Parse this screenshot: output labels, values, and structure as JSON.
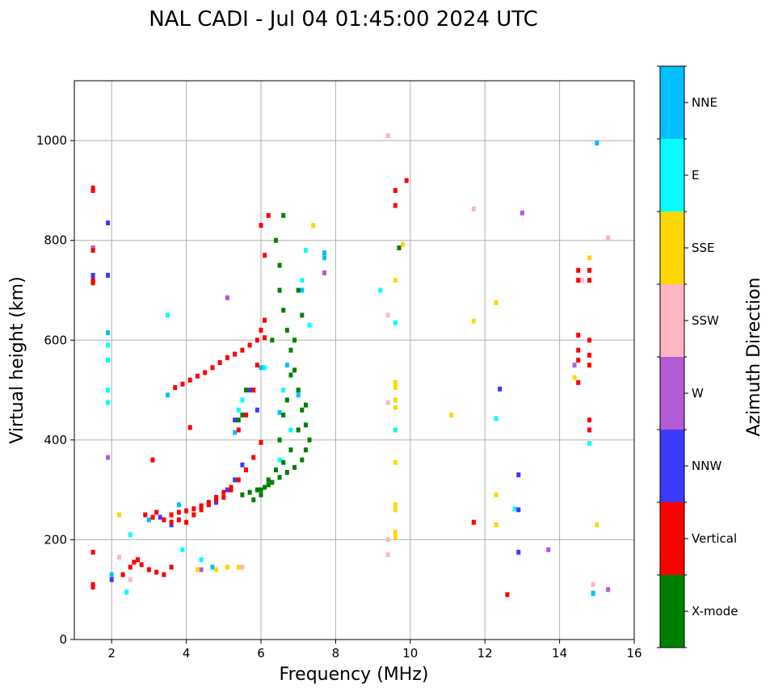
{
  "chart_data": {
    "type": "scatter",
    "subtype": "ionogram",
    "title": "NAL CADI - Jul 04 01:45:00 2024 UTC",
    "xlabel": "Frequency (MHz)",
    "ylabel": "Virtual height (km)",
    "xlim": [
      1,
      16
    ],
    "ylim": [
      0,
      1120
    ],
    "xticks": [
      2,
      4,
      6,
      8,
      10,
      12,
      14,
      16
    ],
    "yticks": [
      0,
      200,
      400,
      600,
      800,
      1000
    ],
    "grid": true,
    "colorbar": {
      "label": "Azimuth Direction",
      "categories": [
        {
          "name": "X-mode",
          "color": "#008000"
        },
        {
          "name": "Vertical",
          "color": "#ff0000"
        },
        {
          "name": "NNW",
          "color": "#3a3aff"
        },
        {
          "name": "W",
          "color": "#b55ad5"
        },
        {
          "name": "SSW",
          "color": "#ffb6c1"
        },
        {
          "name": "SSE",
          "color": "#ffd700"
        },
        {
          "name": "E",
          "color": "#00ffff"
        },
        {
          "name": "NNE",
          "color": "#00bfff"
        }
      ]
    },
    "series": [
      {
        "name": "Vertical",
        "points": [
          [
            1.5,
            905
          ],
          [
            1.5,
            900
          ],
          [
            1.5,
            780
          ],
          [
            1.5,
            720
          ],
          [
            1.5,
            715
          ],
          [
            1.5,
            175
          ],
          [
            1.5,
            110
          ],
          [
            1.5,
            105
          ],
          [
            2.3,
            130
          ],
          [
            2.5,
            145
          ],
          [
            2.6,
            155
          ],
          [
            2.7,
            160
          ],
          [
            2.8,
            150
          ],
          [
            3.0,
            140
          ],
          [
            3.2,
            135
          ],
          [
            3.4,
            130
          ],
          [
            3.6,
            145
          ],
          [
            2.9,
            250
          ],
          [
            3.1,
            245
          ],
          [
            3.2,
            255
          ],
          [
            3.4,
            240
          ],
          [
            3.6,
            250
          ],
          [
            3.8,
            255
          ],
          [
            4.0,
            258
          ],
          [
            4.2,
            262
          ],
          [
            4.4,
            268
          ],
          [
            4.6,
            275
          ],
          [
            4.8,
            285
          ],
          [
            5.0,
            295
          ],
          [
            5.2,
            305
          ],
          [
            5.4,
            320
          ],
          [
            5.6,
            340
          ],
          [
            5.8,
            365
          ],
          [
            6.0,
            395
          ],
          [
            3.6,
            235
          ],
          [
            3.8,
            240
          ],
          [
            4.0,
            235
          ],
          [
            4.2,
            250
          ],
          [
            4.4,
            260
          ],
          [
            4.6,
            270
          ],
          [
            4.8,
            280
          ],
          [
            5.0,
            285
          ],
          [
            5.2,
            300
          ],
          [
            3.7,
            505
          ],
          [
            3.9,
            512
          ],
          [
            4.1,
            520
          ],
          [
            4.3,
            528
          ],
          [
            4.5,
            535
          ],
          [
            4.7,
            545
          ],
          [
            4.9,
            555
          ],
          [
            5.1,
            565
          ],
          [
            5.3,
            572
          ],
          [
            5.5,
            580
          ],
          [
            5.7,
            590
          ],
          [
            5.9,
            600
          ],
          [
            6.1,
            605
          ],
          [
            5.4,
            420
          ],
          [
            5.6,
            450
          ],
          [
            5.8,
            500
          ],
          [
            5.9,
            550
          ],
          [
            6.0,
            620
          ],
          [
            6.1,
            640
          ],
          [
            4.1,
            425
          ],
          [
            3.1,
            360
          ],
          [
            6.0,
            830
          ],
          [
            6.2,
            850
          ],
          [
            6.1,
            770
          ],
          [
            9.6,
            900
          ],
          [
            9.6,
            870
          ],
          [
            9.9,
            920
          ],
          [
            11.7,
            235
          ],
          [
            12.6,
            90
          ],
          [
            14.5,
            740
          ],
          [
            14.5,
            720
          ],
          [
            14.5,
            610
          ],
          [
            14.5,
            580
          ],
          [
            14.5,
            560
          ],
          [
            14.5,
            515
          ],
          [
            14.8,
            740
          ],
          [
            14.8,
            720
          ],
          [
            14.8,
            600
          ],
          [
            14.8,
            570
          ],
          [
            14.8,
            550
          ],
          [
            14.8,
            440
          ],
          [
            14.8,
            420
          ]
        ]
      },
      {
        "name": "X-mode",
        "points": [
          [
            5.5,
            290
          ],
          [
            5.7,
            295
          ],
          [
            5.9,
            300
          ],
          [
            6.1,
            305
          ],
          [
            6.3,
            315
          ],
          [
            6.5,
            325
          ],
          [
            6.7,
            335
          ],
          [
            6.9,
            345
          ],
          [
            7.1,
            360
          ],
          [
            7.2,
            380
          ],
          [
            7.3,
            400
          ],
          [
            7.2,
            430
          ],
          [
            7.1,
            460
          ],
          [
            7.0,
            500
          ],
          [
            6.9,
            540
          ],
          [
            6.8,
            580
          ],
          [
            6.7,
            620
          ],
          [
            6.6,
            660
          ],
          [
            6.5,
            700
          ],
          [
            6.5,
            750
          ],
          [
            6.4,
            800
          ],
          [
            6.6,
            850
          ],
          [
            6.3,
            600
          ],
          [
            6.0,
            300
          ],
          [
            6.2,
            320
          ],
          [
            6.4,
            340
          ],
          [
            6.6,
            355
          ],
          [
            6.8,
            380
          ],
          [
            6.5,
            400
          ],
          [
            6.6,
            450
          ],
          [
            6.7,
            480
          ],
          [
            5.8,
            280
          ],
          [
            6.0,
            290
          ],
          [
            6.2,
            310
          ],
          [
            7.0,
            420
          ],
          [
            7.2,
            470
          ],
          [
            6.9,
            600
          ],
          [
            7.1,
            650
          ],
          [
            7.0,
            700
          ],
          [
            6.8,
            530
          ],
          [
            5.5,
            450
          ],
          [
            5.6,
            500
          ],
          [
            5.4,
            440
          ],
          [
            9.7,
            785
          ]
        ]
      },
      {
        "name": "NNW",
        "points": [
          [
            1.5,
            730
          ],
          [
            1.9,
            835
          ],
          [
            3.3,
            245
          ],
          [
            3.6,
            230
          ],
          [
            4.4,
            265
          ],
          [
            4.8,
            275
          ],
          [
            5.1,
            300
          ],
          [
            5.3,
            320
          ],
          [
            5.5,
            350
          ],
          [
            5.3,
            440
          ],
          [
            5.7,
            500
          ],
          [
            5.9,
            460
          ],
          [
            2.0,
            120
          ],
          [
            12.4,
            502
          ],
          [
            12.9,
            330
          ],
          [
            12.9,
            260
          ],
          [
            12.9,
            175
          ],
          [
            1.9,
            730
          ]
        ]
      },
      {
        "name": "W",
        "points": [
          [
            1.9,
            365
          ],
          [
            1.5,
            785
          ],
          [
            7.7,
            735
          ],
          [
            13.0,
            855
          ],
          [
            13.7,
            180
          ],
          [
            15.3,
            100
          ],
          [
            14.4,
            550
          ],
          [
            4.4,
            140
          ],
          [
            5.1,
            685
          ]
        ]
      },
      {
        "name": "SSW",
        "points": [
          [
            9.4,
            1010
          ],
          [
            9.4,
            650
          ],
          [
            9.4,
            475
          ],
          [
            9.4,
            200
          ],
          [
            9.4,
            170
          ],
          [
            11.7,
            863
          ],
          [
            15.3,
            805
          ],
          [
            14.9,
            110
          ],
          [
            2.2,
            165
          ],
          [
            2.5,
            120
          ],
          [
            5.5,
            145
          ],
          [
            14.6,
            720
          ]
        ]
      },
      {
        "name": "SSE",
        "points": [
          [
            9.6,
            515
          ],
          [
            9.6,
            505
          ],
          [
            9.6,
            480
          ],
          [
            9.6,
            465
          ],
          [
            9.6,
            420
          ],
          [
            9.6,
            355
          ],
          [
            9.6,
            270
          ],
          [
            9.6,
            260
          ],
          [
            9.6,
            215
          ],
          [
            9.6,
            205
          ],
          [
            9.6,
            720
          ],
          [
            9.8,
            792
          ],
          [
            11.1,
            450
          ],
          [
            11.7,
            638
          ],
          [
            12.3,
            675
          ],
          [
            12.3,
            290
          ],
          [
            12.3,
            230
          ],
          [
            14.4,
            525
          ],
          [
            14.8,
            765
          ],
          [
            15.0,
            230
          ],
          [
            7.4,
            830
          ],
          [
            2.2,
            250
          ],
          [
            4.8,
            140
          ],
          [
            5.1,
            145
          ],
          [
            5.4,
            145
          ],
          [
            4.3,
            140
          ]
        ]
      },
      {
        "name": "E",
        "points": [
          [
            1.9,
            590
          ],
          [
            1.9,
            560
          ],
          [
            1.9,
            500
          ],
          [
            1.9,
            475
          ],
          [
            2.5,
            210
          ],
          [
            2.4,
            95
          ],
          [
            3.5,
            650
          ],
          [
            3.9,
            180
          ],
          [
            5.5,
            480
          ],
          [
            6.6,
            500
          ],
          [
            6.8,
            420
          ],
          [
            6.9,
            600
          ],
          [
            7.1,
            720
          ],
          [
            7.2,
            780
          ],
          [
            7.3,
            630
          ],
          [
            9.2,
            700
          ],
          [
            9.6,
            635
          ],
          [
            9.6,
            420
          ],
          [
            12.3,
            443
          ],
          [
            12.8,
            262
          ],
          [
            14.8,
            393
          ],
          [
            14.9,
            92
          ],
          [
            6.5,
            360
          ],
          [
            6.1,
            545
          ],
          [
            4.4,
            160
          ],
          [
            5.4,
            460
          ]
        ]
      },
      {
        "name": "NNE",
        "points": [
          [
            1.5,
            725
          ],
          [
            1.9,
            615
          ],
          [
            3.0,
            240
          ],
          [
            3.8,
            270
          ],
          [
            4.7,
            145
          ],
          [
            5.3,
            415
          ],
          [
            6.0,
            545
          ],
          [
            6.1,
            640
          ],
          [
            6.5,
            455
          ],
          [
            6.7,
            550
          ],
          [
            7.0,
            490
          ],
          [
            7.1,
            700
          ],
          [
            7.7,
            775
          ],
          [
            7.7,
            765
          ],
          [
            15.0,
            995
          ],
          [
            14.9,
            93
          ],
          [
            2.0,
            130
          ],
          [
            3.5,
            490
          ]
        ]
      }
    ]
  }
}
